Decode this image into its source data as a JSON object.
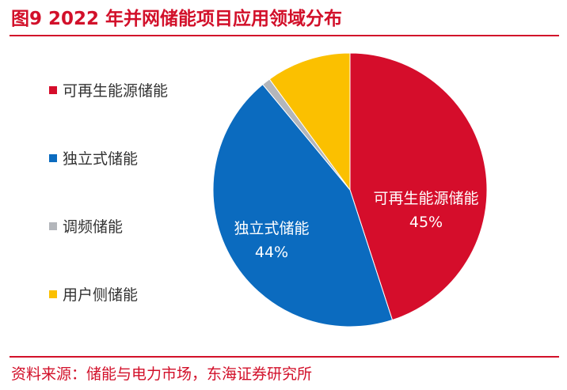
{
  "figure": {
    "title": "图9  2022 年并网储能项目应用领域分布",
    "source": "资料来源：储能与电力市场，东海证券研究所"
  },
  "chart_data": {
    "type": "pie",
    "categories": [
      "可再生能源储能",
      "独立式储能",
      "调频储能",
      "用户侧储能"
    ],
    "values": [
      45,
      44,
      1,
      10
    ],
    "data_labels": [
      {
        "name": "可再生能源储能",
        "percent": "45%"
      },
      {
        "name": "独立式储能",
        "percent": "44%"
      }
    ],
    "colors": [
      "#d50d2b",
      "#0b6bbf",
      "#b3b6bb",
      "#fbc000"
    ],
    "legend_position": "left"
  }
}
